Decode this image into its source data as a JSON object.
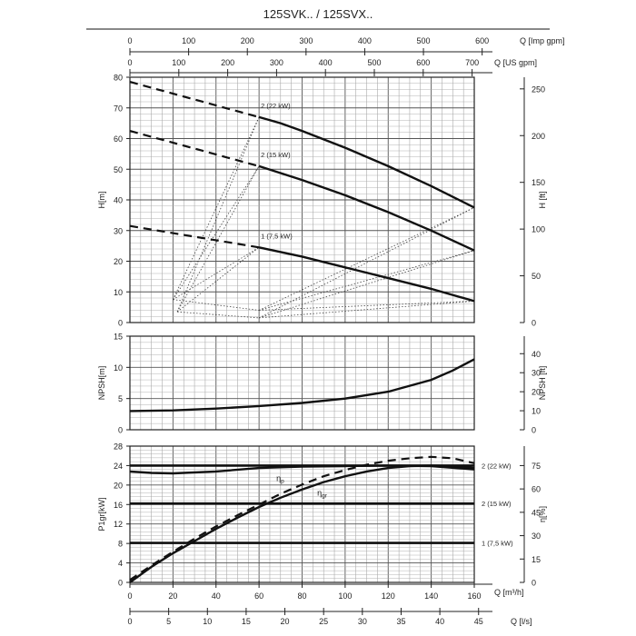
{
  "title": "125SVK.. / 125SVX..",
  "chart_data": {
    "type": "line",
    "top_axes": [
      {
        "label": "Q [Imp gpm]",
        "ticks": [
          0,
          100,
          200,
          300,
          400,
          500,
          600
        ]
      },
      {
        "label": "Q [US gpm]",
        "ticks": [
          0,
          100,
          200,
          300,
          400,
          500,
          600,
          700
        ]
      }
    ],
    "bottom_axes": [
      {
        "label": "Q [m³/h]",
        "ticks": [
          0,
          20,
          40,
          60,
          80,
          100,
          120,
          140,
          160
        ]
      },
      {
        "label": "Q [l/s]",
        "ticks": [
          0,
          5,
          10,
          15,
          20,
          25,
          30,
          35,
          40,
          45
        ]
      }
    ],
    "x_range_m3h": [
      0,
      160
    ],
    "panels": [
      {
        "id": "head",
        "left_label": "H[m]",
        "right_label": "H [ft]",
        "ylim": [
          0,
          80
        ],
        "left_ticks": [
          0,
          10,
          20,
          30,
          40,
          50,
          60,
          70,
          80
        ],
        "right_ticks": [
          0,
          50,
          100,
          150,
          200,
          250
        ],
        "series": [
          {
            "name": "2 (22 kW)",
            "dashed": [
              [
                0,
                78.5
              ],
              [
                60,
                67
              ]
            ],
            "solid": [
              [
                60,
                67
              ],
              [
                70,
                65
              ],
              [
                80,
                62.5
              ],
              [
                100,
                57
              ],
              [
                120,
                51
              ],
              [
                140,
                44.5
              ],
              [
                160,
                37.5
              ]
            ]
          },
          {
            "name": "2 (15 kW)",
            "dashed": [
              [
                0,
                62.5
              ],
              [
                60,
                51
              ]
            ],
            "solid": [
              [
                60,
                51
              ],
              [
                80,
                46.5
              ],
              [
                100,
                41.5
              ],
              [
                120,
                36
              ],
              [
                140,
                30
              ],
              [
                160,
                23.5
              ]
            ]
          },
          {
            "name": "1 (7,5 kW)",
            "dashed": [
              [
                0,
                31.5
              ],
              [
                60,
                24.5
              ]
            ],
            "solid": [
              [
                60,
                24.5
              ],
              [
                80,
                21.5
              ],
              [
                100,
                18
              ],
              [
                120,
                14.5
              ],
              [
                140,
                11
              ],
              [
                160,
                7
              ]
            ]
          }
        ],
        "efficiency_envelope": [
          [
            [
              20,
              7.5
            ],
            [
              60,
              67
            ]
          ],
          [
            [
              20,
              7.5
            ],
            [
              60,
              51
            ]
          ],
          [
            [
              20,
              7.5
            ],
            [
              60,
              24.5
            ]
          ],
          [
            [
              22,
              3.5
            ],
            [
              60,
              67
            ]
          ],
          [
            [
              22,
              3.5
            ],
            [
              60,
              51
            ]
          ],
          [
            [
              22,
              3.5
            ],
            [
              60,
              24.5
            ]
          ],
          [
            [
              20,
              7.5
            ],
            [
              60,
              4
            ]
          ],
          [
            [
              60,
              4
            ],
            [
              160,
              37.5
            ]
          ],
          [
            [
              60,
              4
            ],
            [
              160,
              23.5
            ]
          ],
          [
            [
              60,
              4
            ],
            [
              160,
              7
            ]
          ],
          [
            [
              22,
              3.5
            ],
            [
              60,
              1.5
            ]
          ],
          [
            [
              60,
              1.5
            ],
            [
              160,
              37.5
            ]
          ],
          [
            [
              60,
              1.5
            ],
            [
              160,
              23.5
            ]
          ],
          [
            [
              60,
              1.5
            ],
            [
              160,
              7
            ]
          ]
        ]
      },
      {
        "id": "npsh",
        "left_label": "NPSH[m]",
        "right_label": "NPSH [ft]",
        "ylim": [
          0,
          15
        ],
        "left_ticks": [
          0,
          5,
          10,
          15
        ],
        "right_ticks": [
          0,
          10,
          20,
          30,
          40
        ],
        "series": [
          {
            "name": "NPSH",
            "solid": [
              [
                0,
                3.0
              ],
              [
                20,
                3.1
              ],
              [
                40,
                3.4
              ],
              [
                60,
                3.8
              ],
              [
                80,
                4.3
              ],
              [
                100,
                5.0
              ],
              [
                120,
                6.1
              ],
              [
                140,
                8.0
              ],
              [
                150,
                9.5
              ],
              [
                160,
                11.3
              ]
            ]
          }
        ]
      },
      {
        "id": "power",
        "left_label": "P1gr[kW]",
        "right_label": "η[%]",
        "ylim": [
          0,
          28
        ],
        "left_ticks": [
          0,
          4,
          8,
          12,
          16,
          20,
          24,
          28
        ],
        "right_ticks": [
          0,
          15,
          30,
          45,
          60,
          75
        ],
        "hlines": [
          {
            "name": "2 (22 kW)",
            "y": 24
          },
          {
            "name": "2 (15 kW)",
            "y": 16.2
          },
          {
            "name": "1 (7,5 kW)",
            "y": 8.1
          }
        ],
        "series": [
          {
            "name": "P1 power",
            "solid": [
              [
                0,
                22.8
              ],
              [
                10,
                22.5
              ],
              [
                20,
                22.4
              ],
              [
                40,
                22.8
              ],
              [
                60,
                23.5
              ],
              [
                80,
                23.8
              ],
              [
                100,
                23.9
              ],
              [
                120,
                24
              ],
              [
                140,
                23.9
              ],
              [
                160,
                23.2
              ]
            ]
          },
          {
            "name": "ηp",
            "dashed": [
              [
                0,
                0.5
              ],
              [
                10,
                3.5
              ],
              [
                20,
                6.3
              ],
              [
                30,
                9
              ],
              [
                40,
                11.5
              ],
              [
                50,
                13.8
              ],
              [
                60,
                16
              ],
              [
                70,
                18.2
              ],
              [
                80,
                20.1
              ],
              [
                90,
                21.8
              ],
              [
                100,
                23.1
              ],
              [
                110,
                24.2
              ],
              [
                120,
                25
              ],
              [
                130,
                25.5
              ],
              [
                140,
                25.8
              ],
              [
                150,
                25.5
              ],
              [
                160,
                24.5
              ]
            ]
          },
          {
            "name": "ηgr",
            "solid": [
              [
                0,
                0
              ],
              [
                10,
                3.2
              ],
              [
                20,
                6
              ],
              [
                30,
                8.5
              ],
              [
                40,
                11
              ],
              [
                50,
                13.3
              ],
              [
                60,
                15.5
              ],
              [
                70,
                17.4
              ],
              [
                80,
                19.1
              ],
              [
                90,
                20.6
              ],
              [
                100,
                21.8
              ],
              [
                110,
                22.8
              ],
              [
                120,
                23.5
              ],
              [
                130,
                23.9
              ],
              [
                140,
                24.0
              ],
              [
                150,
                23.9
              ],
              [
                160,
                23.5
              ]
            ]
          }
        ]
      }
    ],
    "labels": {
      "eta_p_main": "η",
      "eta_p_sub": "p",
      "eta_gr_main": "η",
      "eta_gr_sub": "gr"
    }
  }
}
